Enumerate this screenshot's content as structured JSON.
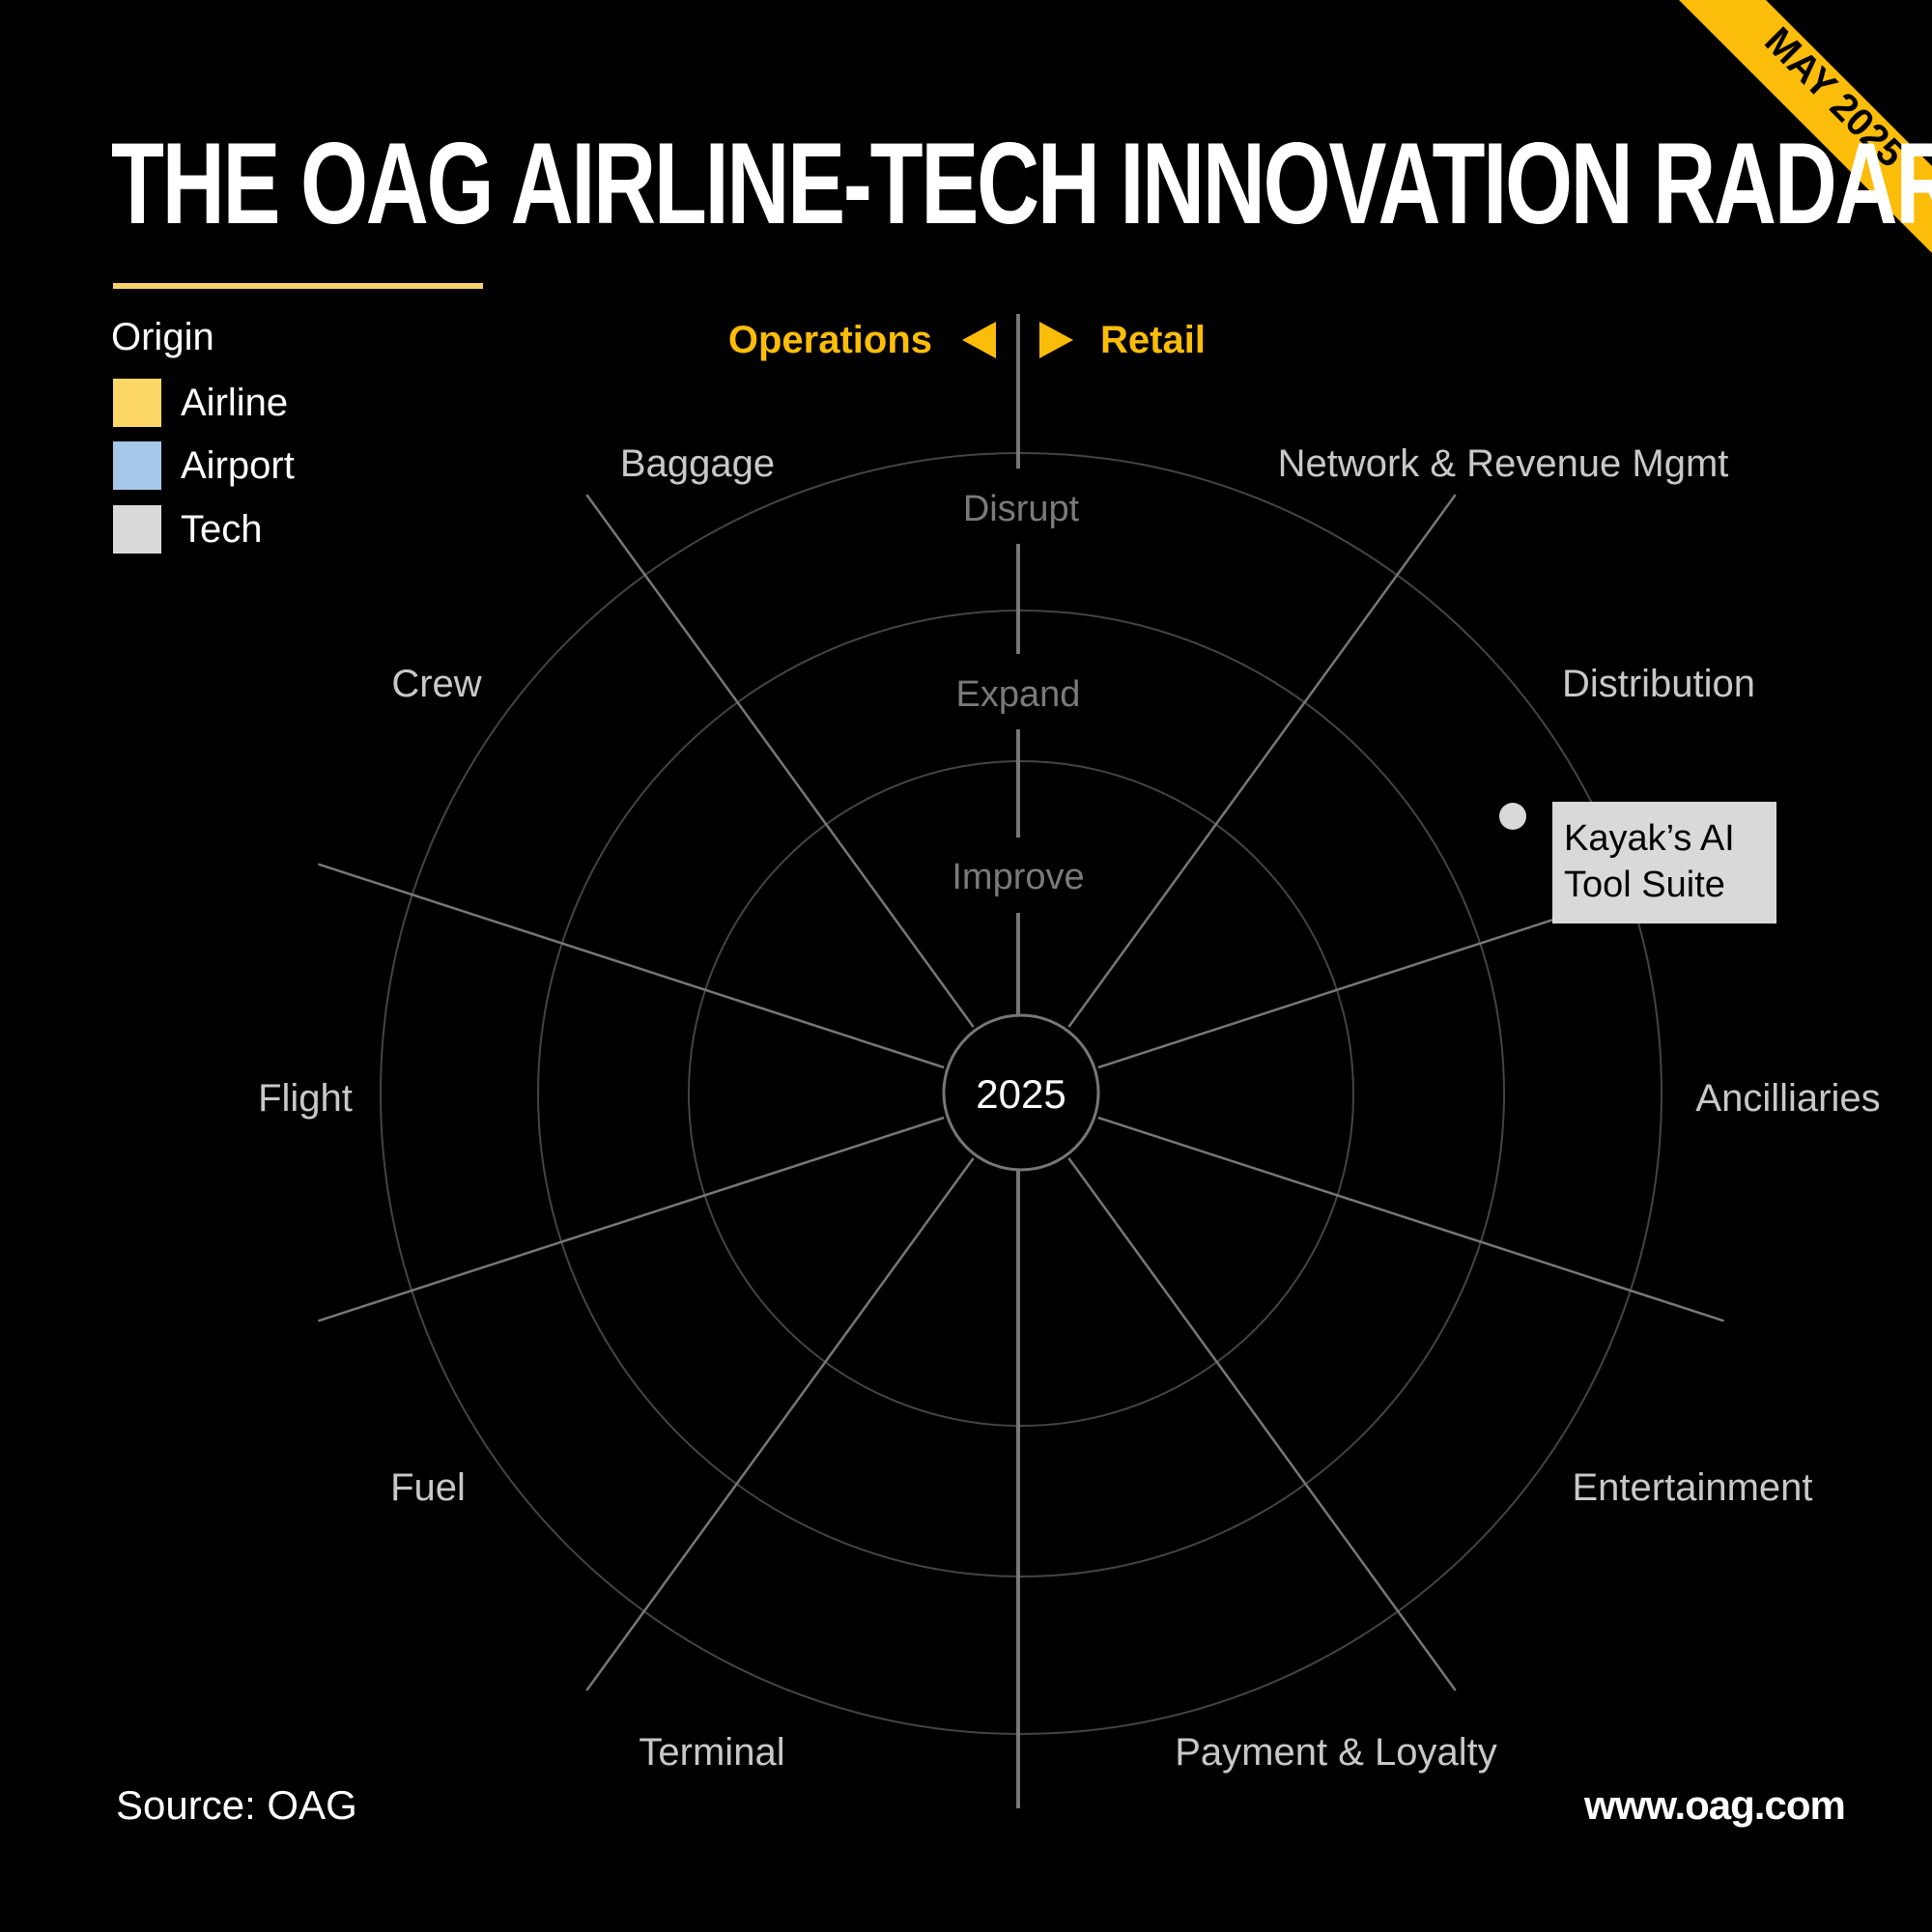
{
  "title": "THE OAG AIRLINE-TECH INNOVATION RADAR",
  "corner_badge": "MAY 2025",
  "legend": {
    "title": "Origin",
    "items": [
      {
        "label": "Airline",
        "color": "#fdd867"
      },
      {
        "label": "Airport",
        "color": "#a4c8e8"
      },
      {
        "label": "Tech",
        "color": "#d9d9d9"
      }
    ]
  },
  "axis_header": {
    "left": "Operations",
    "right": "Retail",
    "color": "#fbbc0a"
  },
  "rings": [
    "Improve",
    "Expand",
    "Disrupt"
  ],
  "center_label": "2025",
  "segments": [
    "Baggage",
    "Network & Revenue Mgmt",
    "Distribution",
    "Ancilliaries",
    "Entertainment",
    "Payment & Loyalty",
    "Terminal",
    "Fuel",
    "Flight",
    "Crew"
  ],
  "callout": {
    "lines": [
      "Kayak’s AI",
      "Tool Suite"
    ],
    "origin": "Tech",
    "segment": "Distribution",
    "ring": "Disrupt"
  },
  "source": "Source: OAG",
  "website": "www.oag.com",
  "colors": {
    "background": "#000000",
    "accent": "#fbbc0a",
    "rule": "#f7d36a",
    "grid": "#444444",
    "spoke": "#777777",
    "ring_text": "#7a7a7a",
    "segment_text": "#c8c8c8"
  }
}
